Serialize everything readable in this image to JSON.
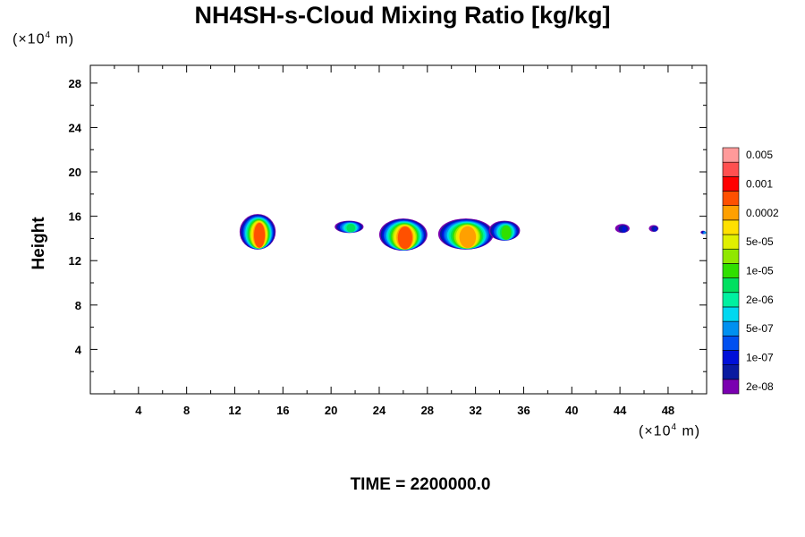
{
  "title": "NH4SH-s-Cloud Mixing Ratio [kg/kg]",
  "y_unit": {
    "prefix": "(×10",
    "exp": "4",
    "suffix": " m)"
  },
  "x_unit": {
    "prefix": "(×10",
    "exp": "4",
    "suffix": " m)"
  },
  "time_label": "TIME = 2200000.0",
  "chart_data": {
    "type": "heatmap",
    "title": "NH4SH-s-Cloud Mixing Ratio [kg/kg]",
    "ylabel": "Height",
    "xlabel": "",
    "x_unit": "×10^4 m",
    "y_unit": "×10^4 m",
    "xlim": [
      0,
      51.2
    ],
    "ylim": [
      0,
      29.6
    ],
    "x_ticks": [
      4,
      8,
      12,
      16,
      20,
      24,
      28,
      32,
      36,
      40,
      44,
      48
    ],
    "y_ticks": [
      4,
      8,
      12,
      16,
      20,
      24,
      28
    ],
    "grid": false,
    "colorbar": {
      "colors": [
        "#7a00b0",
        "#0a1aa0",
        "#0010d8",
        "#0050f0",
        "#0090f0",
        "#00d8f0",
        "#00f0a0",
        "#00e060",
        "#30e000",
        "#90e800",
        "#e0f000",
        "#ffe000",
        "#ffa000",
        "#ff5000",
        "#ff0000",
        "#ff5050",
        "#ff9a9a"
      ],
      "labels": [
        "2e-08",
        "1e-07",
        "5e-07",
        "2e-06",
        "1e-05",
        "5e-05",
        "0.0002",
        "0.001",
        "0.005"
      ]
    },
    "cloud_cells": [
      {
        "x_center": 13.9,
        "y_base": 13.0,
        "y_top": 16.2,
        "x_width": 3.0,
        "max_level": 13
      },
      {
        "x_center": 21.5,
        "y_base": 14.5,
        "y_top": 15.6,
        "x_width": 2.4,
        "max_level": 7
      },
      {
        "x_center": 26.0,
        "y_base": 12.9,
        "y_top": 15.8,
        "x_width": 4.0,
        "max_level": 13
      },
      {
        "x_center": 31.2,
        "y_base": 13.0,
        "y_top": 15.8,
        "x_width": 4.6,
        "max_level": 12
      },
      {
        "x_center": 34.4,
        "y_base": 13.8,
        "y_top": 15.6,
        "x_width": 2.6,
        "max_level": 8
      },
      {
        "x_center": 44.2,
        "y_base": 14.5,
        "y_top": 15.3,
        "x_width": 1.2,
        "max_level": 2
      },
      {
        "x_center": 46.8,
        "y_base": 14.6,
        "y_top": 15.2,
        "x_width": 0.8,
        "max_level": 2
      },
      {
        "x_center": 50.9,
        "y_base": 14.4,
        "y_top": 14.7,
        "x_width": 0.4,
        "max_level": 4
      }
    ]
  }
}
